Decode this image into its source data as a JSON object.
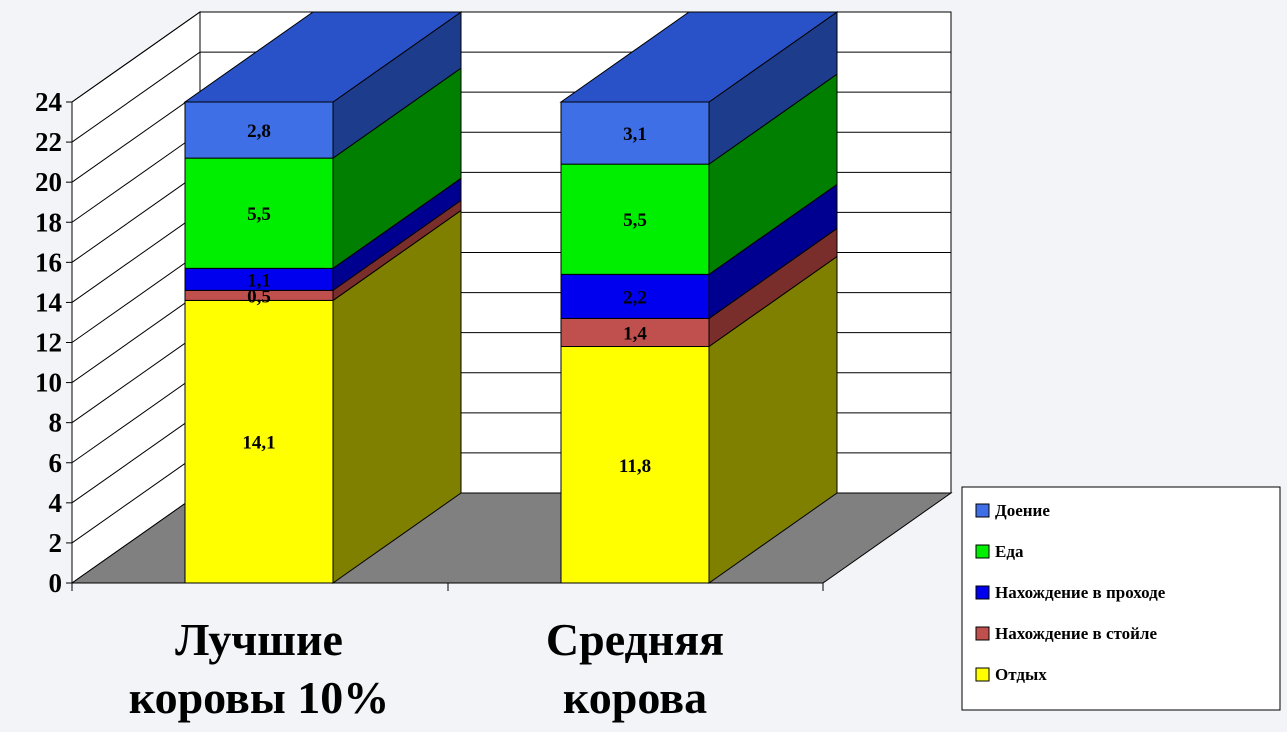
{
  "chart_data": {
    "type": "bar",
    "stacked": true,
    "three_d": true,
    "categories": [
      [
        "Лучшие",
        "коровы 10%"
      ],
      [
        "Средняя",
        "корова"
      ]
    ],
    "series": [
      {
        "name": "Отдых",
        "values": [
          14.1,
          11.8
        ],
        "labels": [
          "14,1",
          "11,8"
        ],
        "color": "#ffff00",
        "side_color": "#7f7f00"
      },
      {
        "name": "Нахождение в стойле",
        "values": [
          0.5,
          1.4
        ],
        "labels": [
          "0,5",
          "1,4"
        ],
        "color": "#c0504d",
        "side_color": "#7a2e2c"
      },
      {
        "name": "Нахождение в проходе",
        "values": [
          1.1,
          2.2
        ],
        "labels": [
          "1,1",
          "2,2"
        ],
        "color": "#0000ee",
        "side_color": "#000090"
      },
      {
        "name": "Еда",
        "values": [
          5.5,
          5.5
        ],
        "labels": [
          "5,5",
          "5,5"
        ],
        "color": "#00ee00",
        "side_color": "#007f00"
      },
      {
        "name": "Доение",
        "values": [
          2.8,
          3.1
        ],
        "labels": [
          "2,8",
          "3,1"
        ],
        "color": "#3f6fe6",
        "side_color": "#1d3c8c",
        "top_color": "#2a52c8"
      }
    ],
    "legend_order": [
      "Доение",
      "Еда",
      "Нахождение в проходе",
      "Нахождение в стойле",
      "Отдых"
    ],
    "y_ticks": [
      "0",
      "2",
      "4",
      "6",
      "8",
      "10",
      "12",
      "14",
      "16",
      "18",
      "20",
      "22",
      "24"
    ],
    "ylim": [
      0,
      24
    ],
    "grid": true,
    "legend_position": "bottom-right",
    "floor_color": "#808080",
    "wall_color": "#ffffff"
  }
}
